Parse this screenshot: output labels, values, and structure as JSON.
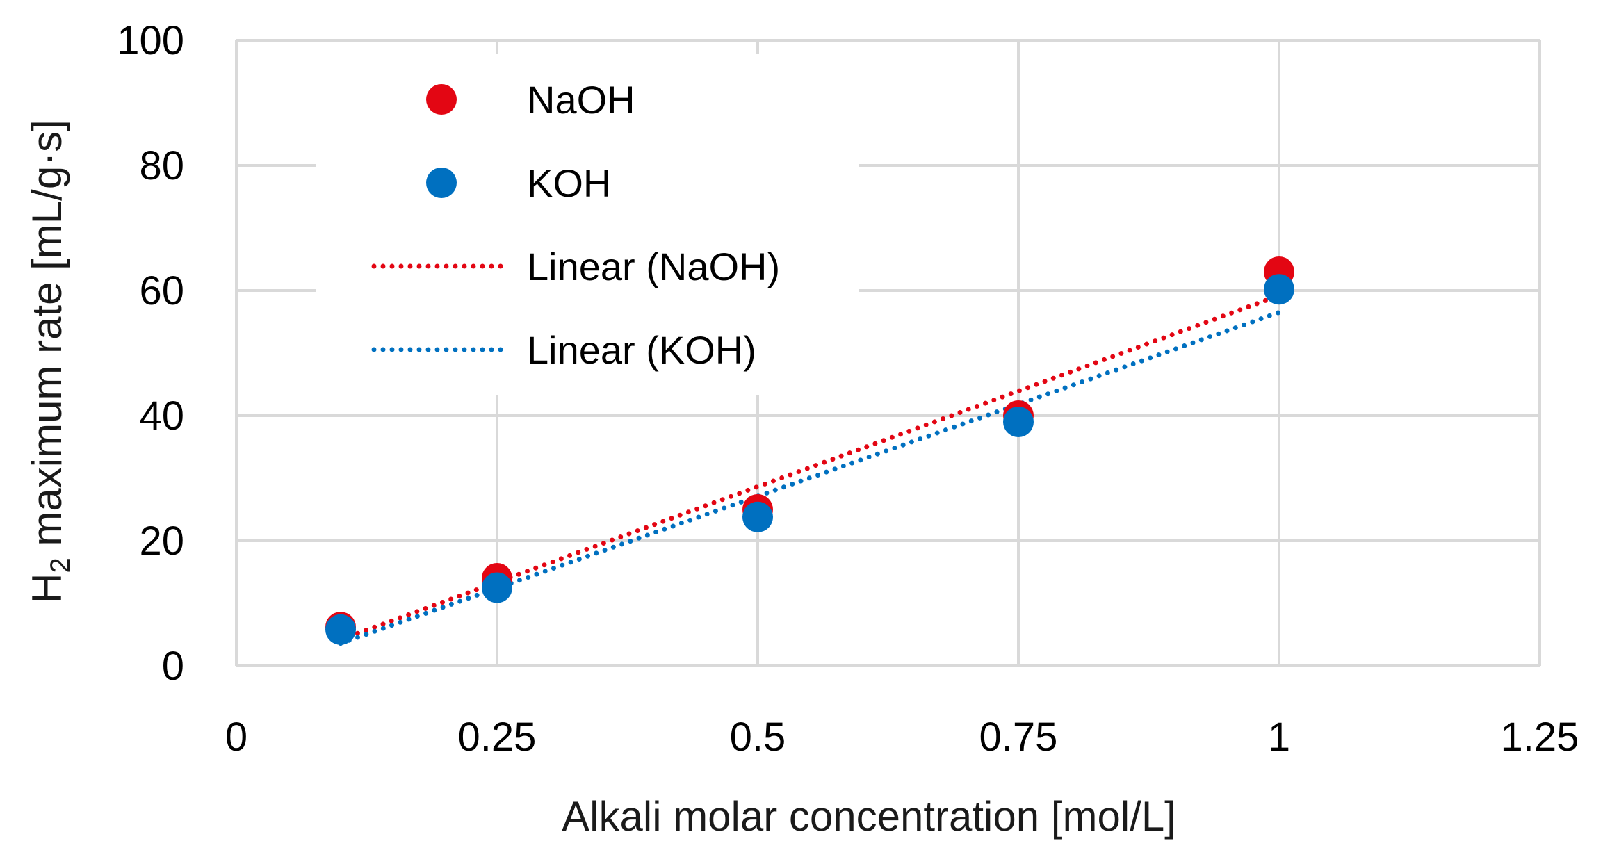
{
  "chart_data": {
    "type": "scatter",
    "title": "",
    "xlabel": "Alkali molar concentration [mol/L]",
    "ylabel": {
      "main": "H",
      "sub": "2",
      "rest": " maximum rate [mL/g·s]"
    },
    "xlim": [
      0,
      1.25
    ],
    "ylim": [
      0,
      100
    ],
    "xticks": [
      0,
      0.25,
      0.5,
      0.75,
      1,
      1.25
    ],
    "xtick_labels": [
      "0",
      "0.25",
      "0.5",
      "0.75",
      "1",
      "1.25"
    ],
    "yticks": [
      0,
      20,
      40,
      60,
      80,
      100
    ],
    "ytick_labels": [
      "0",
      "20",
      "40",
      "60",
      "80",
      "100"
    ],
    "grid": true,
    "legend_position": "top-left",
    "series": [
      {
        "name": "NaOH",
        "color": "#e30613",
        "x": [
          0.1,
          0.25,
          0.5,
          0.75,
          1.0
        ],
        "y": [
          6.2,
          14.0,
          25.0,
          40.0,
          63.0
        ]
      },
      {
        "name": "KOH",
        "color": "#0070c0",
        "x": [
          0.1,
          0.25,
          0.5,
          0.75,
          1.0
        ],
        "y": [
          5.8,
          12.5,
          23.8,
          39.0,
          60.2
        ]
      }
    ],
    "trendlines": [
      {
        "name": "Linear (NaOH)",
        "of": "NaOH",
        "color": "#e30613",
        "style": "dotted",
        "x": [
          0.1,
          1.0
        ],
        "y": [
          4.2,
          59.2
        ]
      },
      {
        "name": "Linear (KOH)",
        "of": "KOH",
        "color": "#0070c0",
        "style": "dotted",
        "x": [
          0.1,
          1.0
        ],
        "y": [
          3.6,
          56.5
        ]
      }
    ]
  }
}
